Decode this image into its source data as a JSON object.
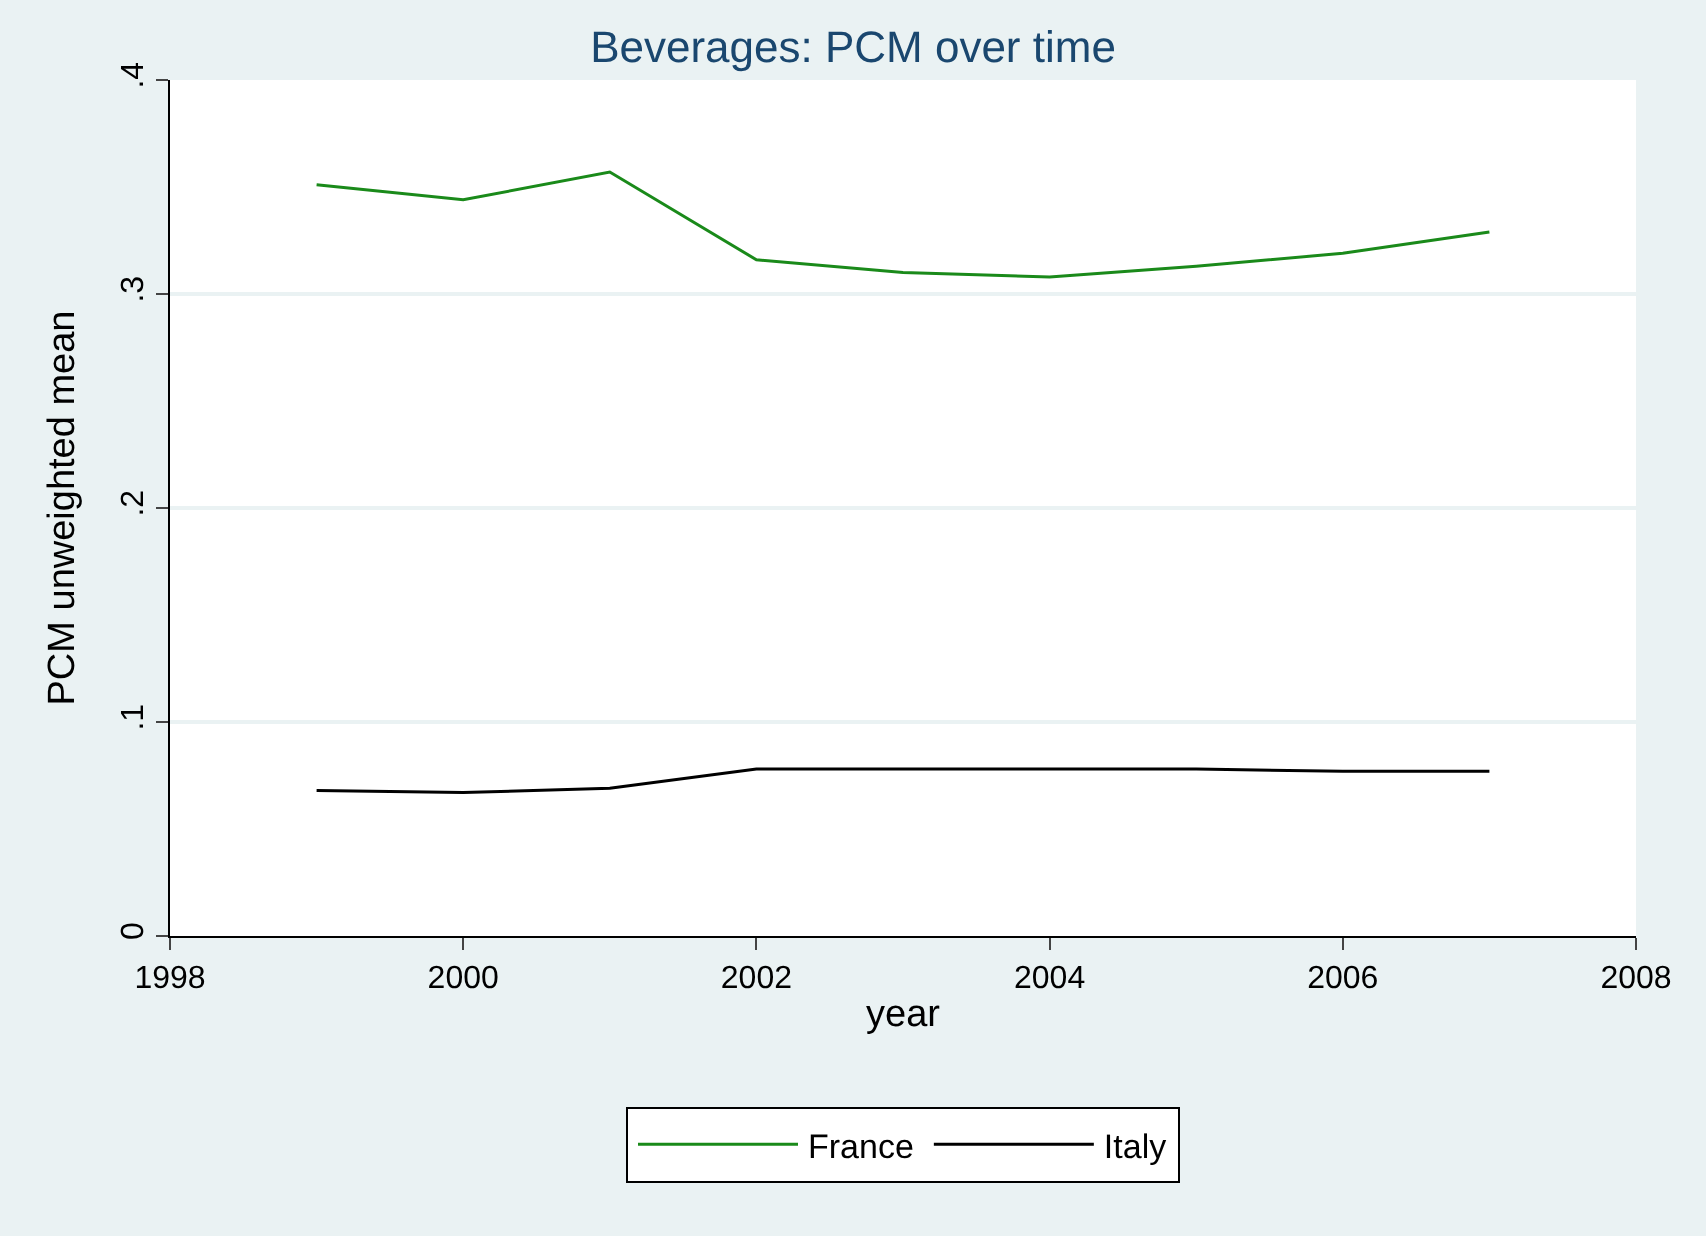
{
  "chart_data": {
    "type": "line",
    "title": "Beverages: PCM over time",
    "xlabel": "year",
    "ylabel": "PCM unweighted mean",
    "x": [
      1999,
      2000,
      2001,
      2002,
      2003,
      2004,
      2005,
      2006,
      2007
    ],
    "series": [
      {
        "name": "France",
        "color": "#1a8a1a",
        "values": [
          0.351,
          0.344,
          0.357,
          0.316,
          0.31,
          0.308,
          0.313,
          0.319,
          0.329
        ]
      },
      {
        "name": "Italy",
        "color": "#000000",
        "values": [
          0.068,
          0.067,
          0.069,
          0.078,
          0.078,
          0.078,
          0.078,
          0.077,
          0.077
        ]
      }
    ],
    "xlim": [
      1998,
      2008
    ],
    "xticks": [
      1998,
      2000,
      2002,
      2004,
      2006,
      2008
    ],
    "ylim": [
      0,
      0.4
    ],
    "yticks": [
      0,
      {
        "value": 0.1,
        "label": ".1"
      },
      {
        "value": 0.2,
        "label": ".2"
      },
      {
        "value": 0.3,
        "label": ".3"
      },
      {
        "value": 0.4,
        "label": ".4"
      }
    ],
    "grid": "y",
    "legend": "bottom",
    "marker": "none",
    "line_style": "solid"
  }
}
